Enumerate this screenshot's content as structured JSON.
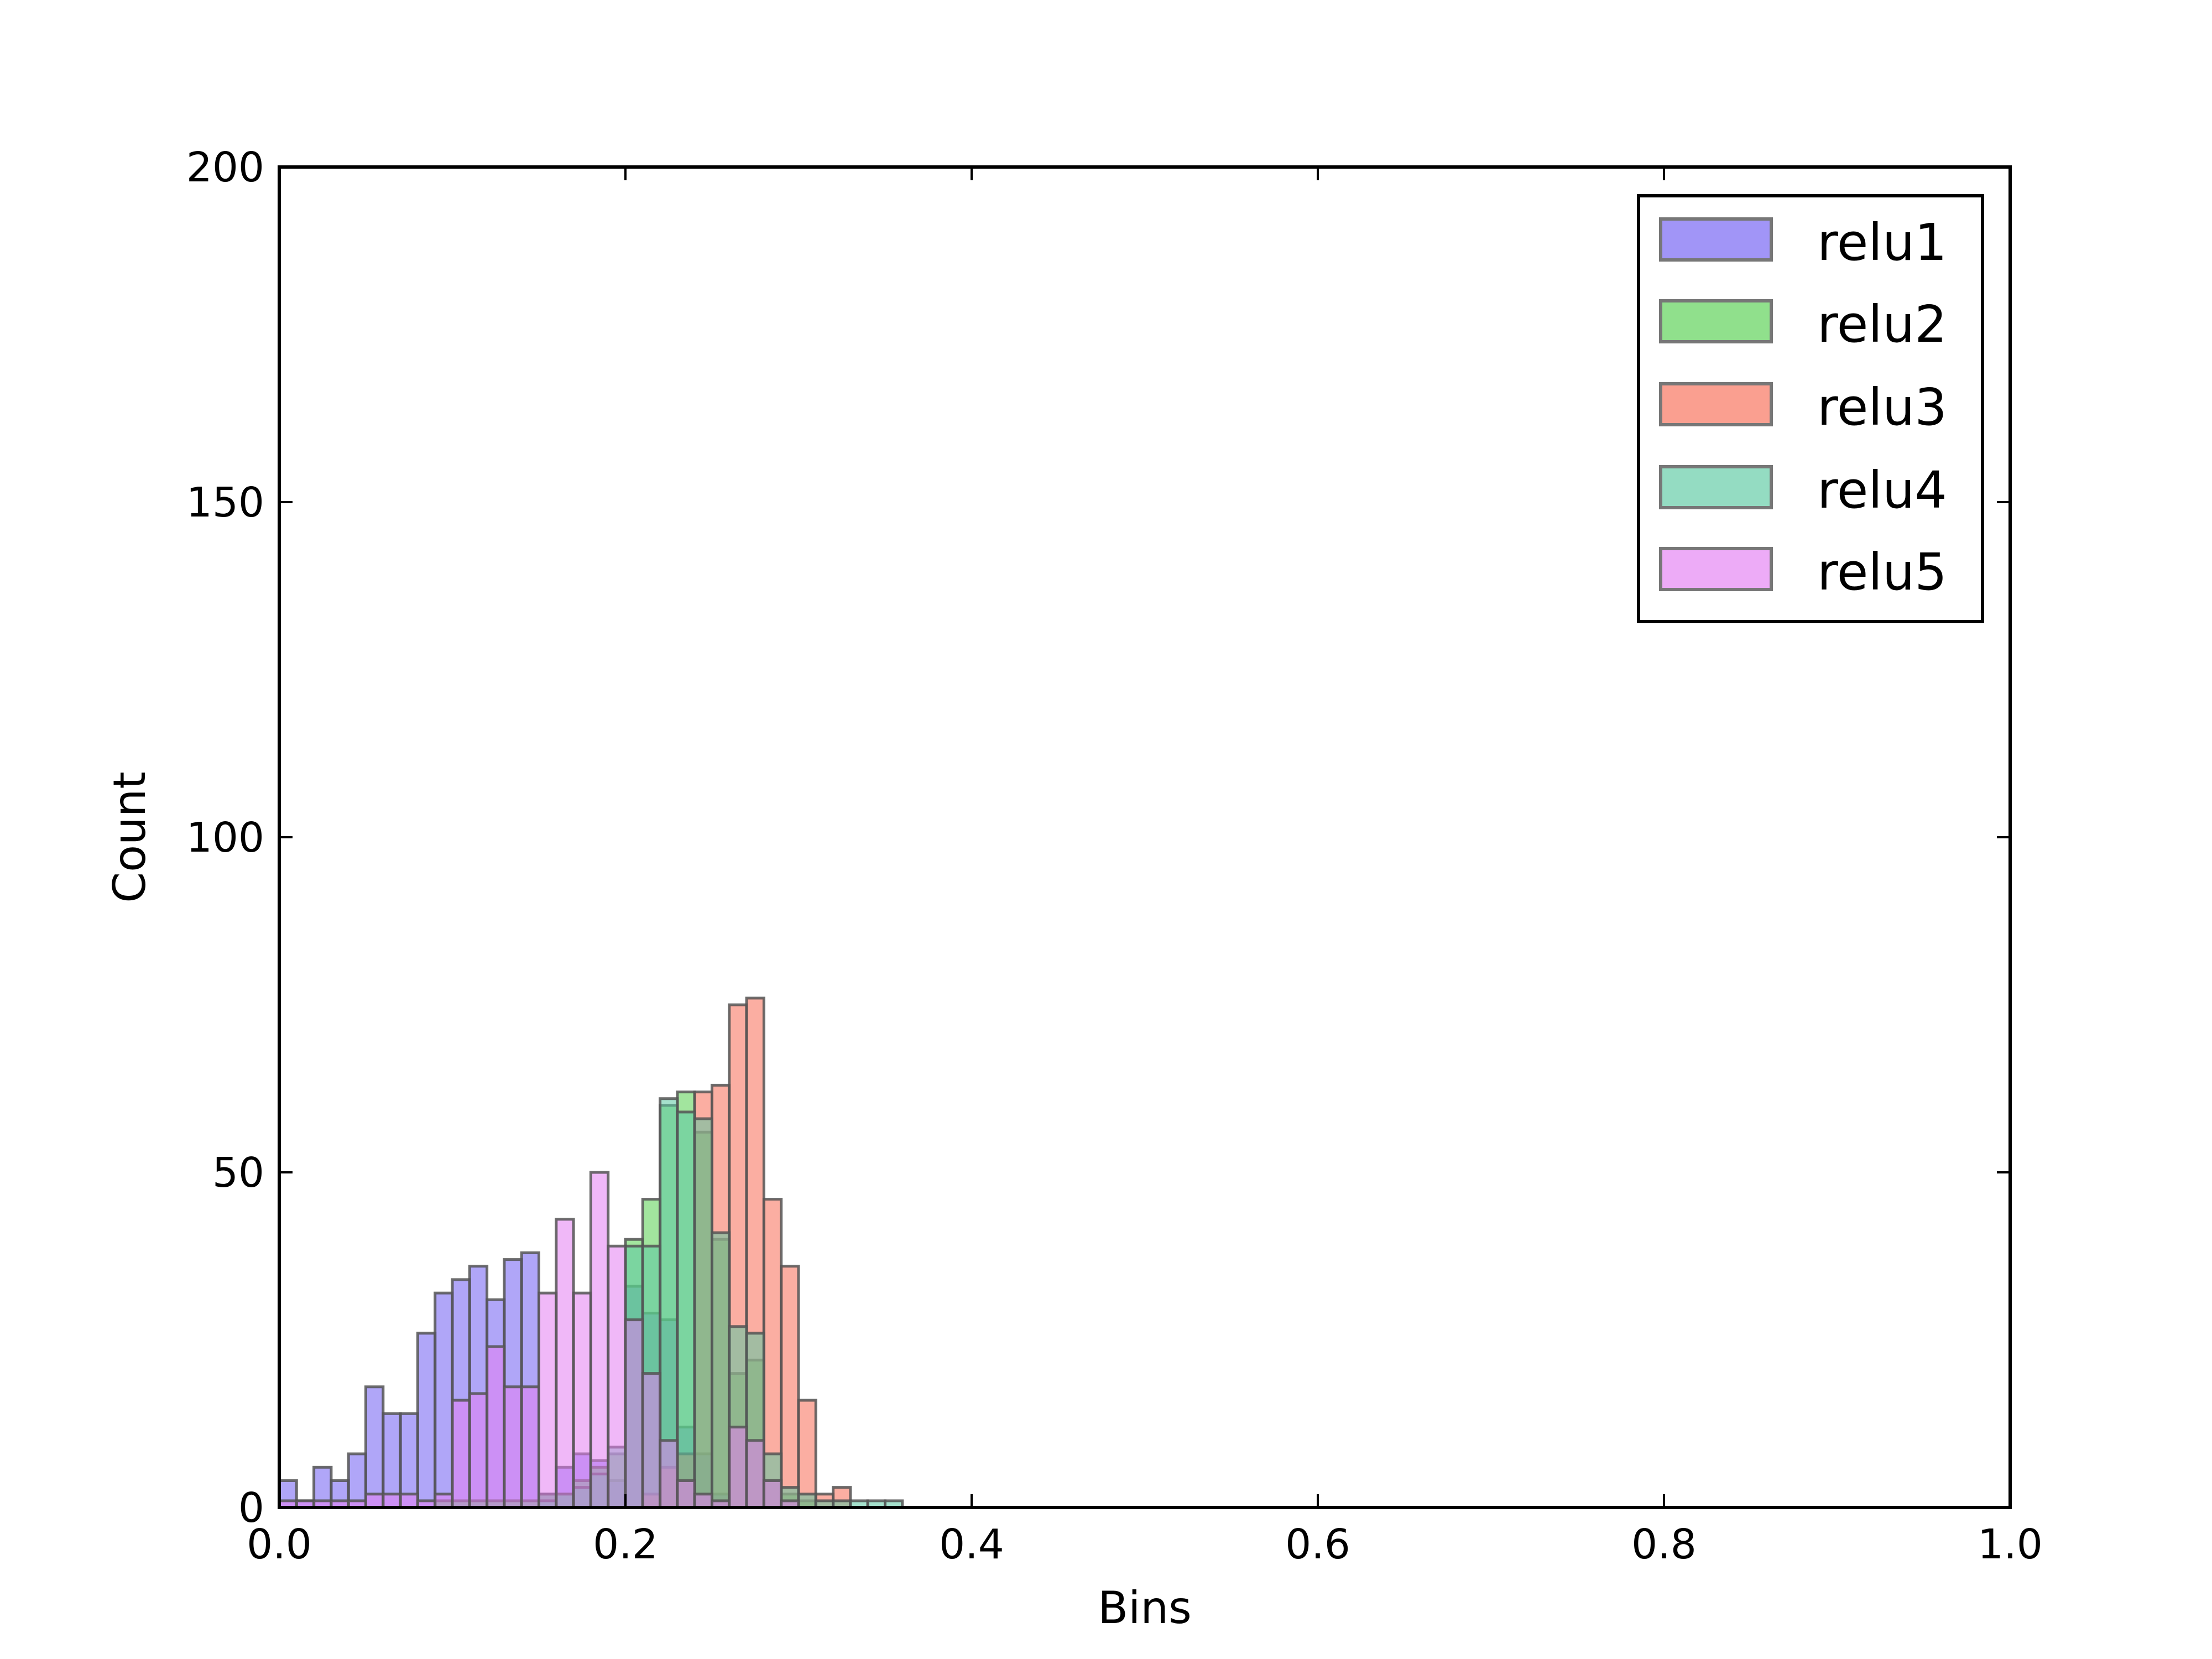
{
  "chart_data": {
    "type": "bar",
    "title": "",
    "xlabel": "Bins",
    "ylabel": "Count",
    "xlim": [
      0.0,
      1.0
    ],
    "ylim": [
      0,
      200
    ],
    "bin_width": 0.01,
    "xticks": [
      "0.0",
      "0.2",
      "0.4",
      "0.6",
      "0.8",
      "1.0"
    ],
    "yticks": [
      "0",
      "50",
      "100",
      "150",
      "200"
    ],
    "grid": false,
    "legend_position": "top-right",
    "series": [
      {
        "name": "relu1",
        "color": "#6f5cf2",
        "x": [
          0.0,
          0.01,
          0.02,
          0.03,
          0.04,
          0.05,
          0.06,
          0.07,
          0.08,
          0.09,
          0.1,
          0.11,
          0.12,
          0.13,
          0.14,
          0.15,
          0.16,
          0.17,
          0.18,
          0.19,
          0.2,
          0.21,
          0.22,
          0.23,
          0.24,
          0.25
        ],
        "values": [
          4,
          1,
          6,
          4,
          8,
          18,
          14,
          14,
          26,
          32,
          34,
          36,
          31,
          37,
          38,
          2,
          6,
          8,
          7,
          4,
          33,
          29,
          28,
          12,
          8,
          2
        ]
      },
      {
        "name": "relu2",
        "color": "#55d04e",
        "x": [
          0.09,
          0.1,
          0.11,
          0.12,
          0.13,
          0.14,
          0.15,
          0.16,
          0.17,
          0.18,
          0.19,
          0.2,
          0.21,
          0.22,
          0.23,
          0.24,
          0.25,
          0.26,
          0.27,
          0.28,
          0.29,
          0.3
        ],
        "values": [
          1,
          1,
          1,
          1,
          1,
          1,
          2,
          2,
          4,
          6,
          8,
          40,
          46,
          60,
          62,
          56,
          40,
          20,
          22,
          4,
          2,
          1
        ]
      },
      {
        "name": "relu3",
        "color": "#f76b55",
        "x": [
          0.21,
          0.22,
          0.23,
          0.24,
          0.25,
          0.26,
          0.27,
          0.28,
          0.29,
          0.3,
          0.31,
          0.32
        ],
        "values": [
          2,
          6,
          8,
          62,
          63,
          75,
          76,
          46,
          36,
          16,
          2,
          3
        ]
      },
      {
        "name": "relu4",
        "color": "#5bc9a2",
        "x": [
          0.15,
          0.16,
          0.17,
          0.18,
          0.19,
          0.2,
          0.21,
          0.22,
          0.23,
          0.24,
          0.25,
          0.26,
          0.27,
          0.28,
          0.29,
          0.3,
          0.31,
          0.32,
          0.33,
          0.34,
          0.35
        ],
        "values": [
          1,
          2,
          3,
          5,
          9,
          39,
          39,
          61,
          59,
          58,
          41,
          27,
          26,
          8,
          3,
          2,
          1,
          1,
          1,
          1,
          1
        ]
      },
      {
        "name": "relu5",
        "color": "#e37ef2",
        "x": [
          0.0,
          0.01,
          0.02,
          0.03,
          0.04,
          0.05,
          0.06,
          0.07,
          0.08,
          0.09,
          0.1,
          0.11,
          0.12,
          0.13,
          0.14,
          0.15,
          0.16,
          0.17,
          0.18,
          0.19,
          0.2,
          0.21,
          0.22,
          0.23,
          0.24,
          0.25,
          0.26,
          0.27,
          0.28,
          0.29
        ],
        "values": [
          1,
          1,
          1,
          1,
          1,
          2,
          2,
          2,
          1,
          2,
          16,
          17,
          24,
          18,
          18,
          32,
          43,
          32,
          50,
          39,
          28,
          20,
          10,
          4,
          2,
          1,
          12,
          10,
          4,
          1
        ]
      }
    ]
  }
}
